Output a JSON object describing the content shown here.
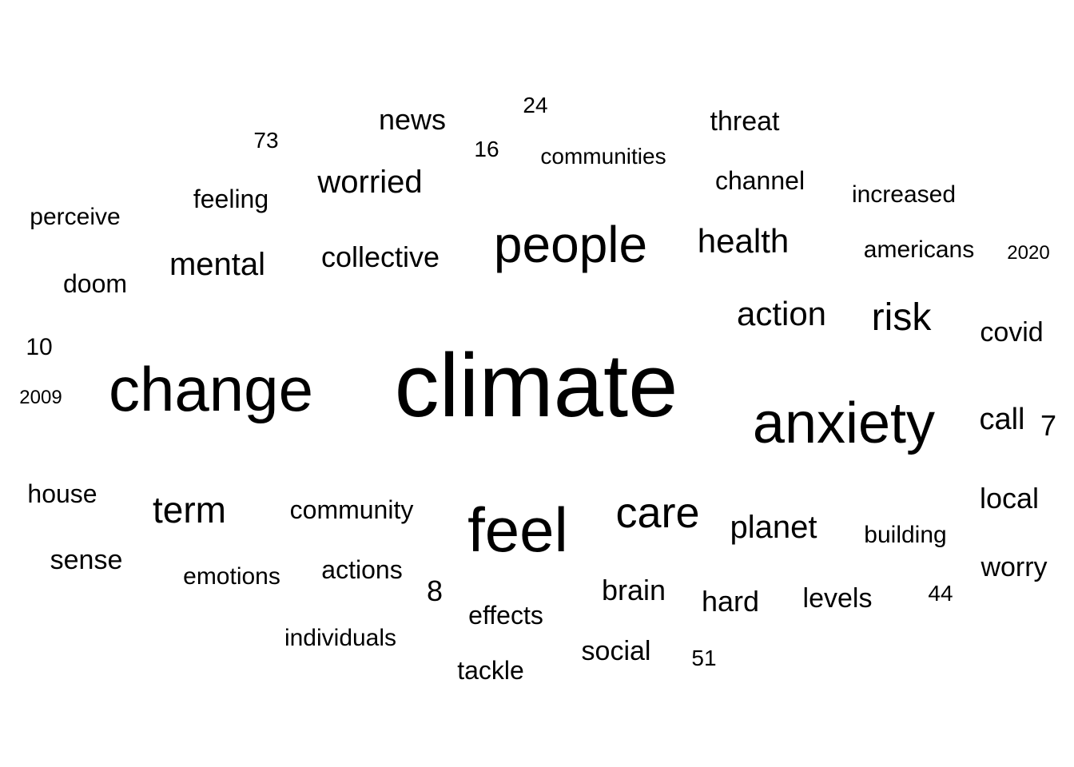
{
  "word_cloud": {
    "text_color": "#000000",
    "background_color": "#ffffff",
    "words": [
      {
        "text": "climate",
        "weight": 1.0
      },
      {
        "text": "anxiety",
        "weight": 0.6
      },
      {
        "text": "change",
        "weight": 0.7
      },
      {
        "text": "feel",
        "weight": 0.62
      },
      {
        "text": "people",
        "weight": 0.5
      },
      {
        "text": "care",
        "weight": 0.45
      },
      {
        "text": "risk",
        "weight": 0.4
      },
      {
        "text": "action",
        "weight": 0.36
      },
      {
        "text": "health",
        "weight": 0.36
      },
      {
        "text": "worried",
        "weight": 0.35
      },
      {
        "text": "mental",
        "weight": 0.35
      },
      {
        "text": "term",
        "weight": 0.4
      },
      {
        "text": "planet",
        "weight": 0.35
      },
      {
        "text": "collective",
        "weight": 0.3
      },
      {
        "text": "news",
        "weight": 0.3
      },
      {
        "text": "threat",
        "weight": 0.28
      },
      {
        "text": "covid",
        "weight": 0.28
      },
      {
        "text": "call",
        "weight": 0.3
      },
      {
        "text": "local",
        "weight": 0.3
      },
      {
        "text": "worry",
        "weight": 0.28
      },
      {
        "text": "brain",
        "weight": 0.28
      },
      {
        "text": "hard",
        "weight": 0.3
      },
      {
        "text": "levels",
        "weight": 0.28
      },
      {
        "text": "social",
        "weight": 0.28
      },
      {
        "text": "community",
        "weight": 0.26
      },
      {
        "text": "sense",
        "weight": 0.27
      },
      {
        "text": "house",
        "weight": 0.26
      },
      {
        "text": "doom",
        "weight": 0.26
      },
      {
        "text": "feeling",
        "weight": 0.25
      },
      {
        "text": "channel",
        "weight": 0.25
      },
      {
        "text": "increased",
        "weight": 0.22
      },
      {
        "text": "americans",
        "weight": 0.22
      },
      {
        "text": "building",
        "weight": 0.22
      },
      {
        "text": "actions",
        "weight": 0.25
      },
      {
        "text": "emotions",
        "weight": 0.22
      },
      {
        "text": "effects",
        "weight": 0.25
      },
      {
        "text": "tackle",
        "weight": 0.25
      },
      {
        "text": "individuals",
        "weight": 0.22
      },
      {
        "text": "perceive",
        "weight": 0.22
      },
      {
        "text": "communities",
        "weight": 0.2
      },
      {
        "text": "8",
        "weight": 0.28
      },
      {
        "text": "7",
        "weight": 0.28
      },
      {
        "text": "10",
        "weight": 0.22
      },
      {
        "text": "73",
        "weight": 0.2
      },
      {
        "text": "24",
        "weight": 0.2
      },
      {
        "text": "16",
        "weight": 0.2
      },
      {
        "text": "44",
        "weight": 0.2
      },
      {
        "text": "51",
        "weight": 0.2
      },
      {
        "text": "2009",
        "weight": 0.17
      },
      {
        "text": "2020",
        "weight": 0.17
      }
    ]
  }
}
